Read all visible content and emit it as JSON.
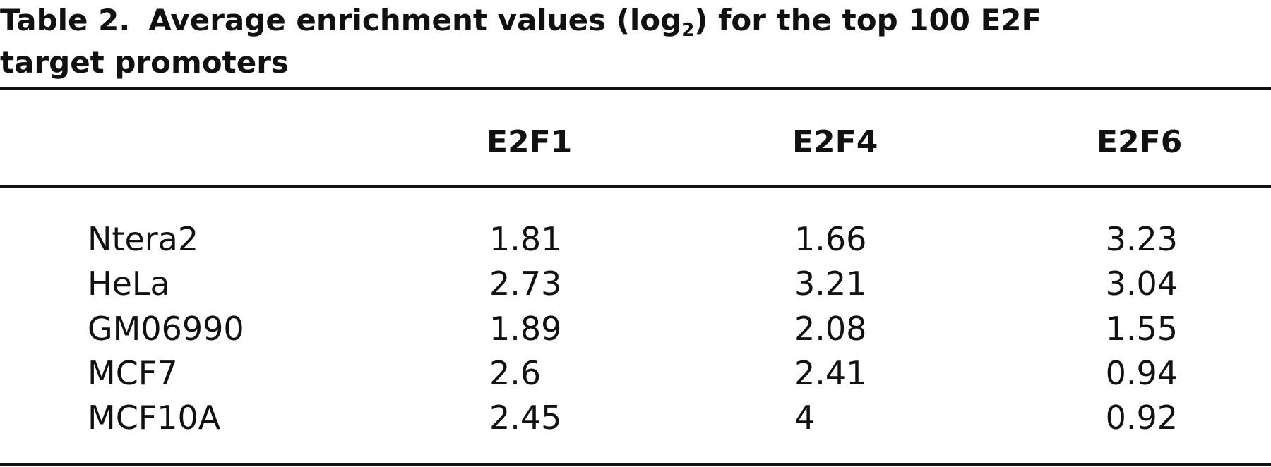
{
  "title": {
    "label": "Table 2.",
    "text_before_sub": "Average enrichment values (log",
    "subscript": "2",
    "text_after_sub": ") for the top 100 E2F",
    "text_line2": "target promoters"
  },
  "table": {
    "columns": [
      "E2F1",
      "E2F4",
      "E2F6"
    ],
    "rows": [
      [
        "Ntera2",
        1.81,
        1.66,
        3.23
      ],
      [
        "HeLa",
        2.73,
        3.21,
        3.04
      ],
      [
        "GM06990",
        1.89,
        2.08,
        1.55
      ],
      [
        "MCF7",
        2.6,
        2.41,
        0.94
      ],
      [
        "MCF10A",
        2.45,
        4,
        0.92
      ]
    ]
  }
}
